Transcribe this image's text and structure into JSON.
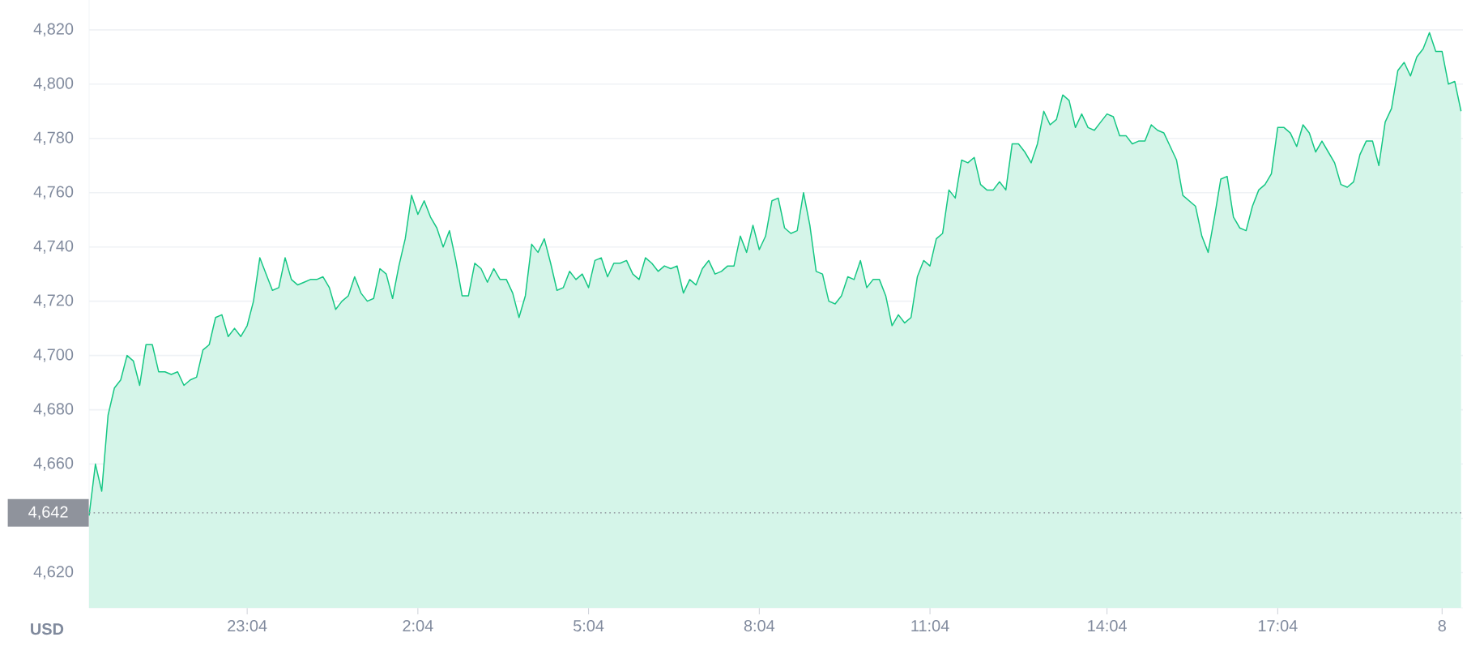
{
  "chart_data": {
    "type": "area",
    "ylabel": "USD",
    "grid": "y",
    "ylim": [
      4607,
      4831
    ],
    "categories": [
      null,
      null,
      null,
      null,
      null,
      null,
      null,
      null,
      null,
      null,
      null,
      null,
      null,
      null,
      null,
      null,
      null,
      null,
      null,
      null,
      null,
      null,
      null,
      null,
      null,
      "23:04",
      null,
      null,
      null,
      null,
      null,
      null,
      null,
      null,
      null,
      null,
      null,
      null,
      null,
      null,
      null,
      null,
      null,
      null,
      null,
      null,
      null,
      null,
      null,
      null,
      null,
      null,
      "2:04",
      null,
      null,
      null,
      null,
      null,
      null,
      null,
      null,
      null,
      null,
      null,
      null,
      null,
      null,
      null,
      null,
      null,
      null,
      null,
      null,
      null,
      null,
      null,
      null,
      null,
      null,
      "5:04",
      null,
      null,
      null,
      null,
      null,
      null,
      null,
      null,
      null,
      null,
      null,
      null,
      null,
      null,
      null,
      null,
      null,
      null,
      null,
      null,
      null,
      null,
      null,
      null,
      null,
      null,
      "8:04",
      null,
      null,
      null,
      null,
      null,
      null,
      null,
      null,
      null,
      null,
      null,
      null,
      null,
      null,
      null,
      null,
      null,
      null,
      null,
      null,
      null,
      null,
      null,
      null,
      null,
      null,
      "11:04",
      null,
      null,
      null,
      null,
      null,
      null,
      null,
      null,
      null,
      null,
      null,
      null,
      null,
      null,
      null,
      null,
      null,
      null,
      null,
      null,
      null,
      null,
      null,
      null,
      null,
      null,
      null,
      "14:04",
      null,
      null,
      null,
      null,
      null,
      null,
      null,
      null,
      null,
      null,
      null,
      null,
      null,
      null,
      null,
      null,
      null,
      null,
      null,
      null,
      null,
      null,
      null,
      null,
      null,
      null,
      "17:04",
      null,
      null,
      null,
      null,
      null,
      null,
      null,
      null,
      null,
      null,
      null,
      null,
      null,
      null,
      null,
      null,
      null,
      null,
      null,
      null,
      null,
      null,
      null,
      null,
      null,
      "8",
      null,
      null,
      null
    ],
    "yticks": [
      {
        "value": 4620,
        "label": "4,620"
      },
      {
        "value": 4640,
        "label": null
      },
      {
        "value": 4660,
        "label": "4,660"
      },
      {
        "value": 4680,
        "label": "4,680"
      },
      {
        "value": 4700,
        "label": "4,700"
      },
      {
        "value": 4720,
        "label": "4,720"
      },
      {
        "value": 4740,
        "label": "4,740"
      },
      {
        "value": 4760,
        "label": "4,760"
      },
      {
        "value": 4780,
        "label": "4,780"
      },
      {
        "value": 4800,
        "label": "4,800"
      },
      {
        "value": 4820,
        "label": "4,820"
      }
    ],
    "ref_lines": [
      {
        "axis": "y",
        "value": 4642,
        "label": "4,642",
        "color": "#8f939c",
        "line_style": "dotted"
      }
    ],
    "series": [
      {
        "color": "#16c784",
        "values": [
          4641,
          4660,
          4650,
          4678,
          4688,
          4691,
          4700,
          4698,
          4689,
          4704,
          4704,
          4694,
          4694,
          4693,
          4694,
          4689,
          4691,
          4692,
          4702,
          4704,
          4714,
          4715,
          4707,
          4710,
          4707,
          4711,
          4720,
          4736,
          4730,
          4724,
          4725,
          4736,
          4728,
          4726,
          4727,
          4728,
          4728,
          4729,
          4725,
          4717,
          4720,
          4722,
          4729,
          4723,
          4720,
          4721,
          4732,
          4730,
          4721,
          4733,
          4743,
          4759,
          4752,
          4757,
          4751,
          4747,
          4740,
          4746,
          4735,
          4722,
          4722,
          4734,
          4732,
          4727,
          4732,
          4728,
          4728,
          4723,
          4714,
          4722,
          4741,
          4738,
          4743,
          4734,
          4724,
          4725,
          4731,
          4728,
          4730,
          4725,
          4735,
          4736,
          4729,
          4734,
          4734,
          4735,
          4730,
          4728,
          4736,
          4734,
          4731,
          4733,
          4732,
          4733,
          4723,
          4728,
          4726,
          4732,
          4735,
          4730,
          4731,
          4733,
          4733,
          4744,
          4738,
          4748,
          4739,
          4744,
          4757,
          4758,
          4747,
          4745,
          4746,
          4760,
          4748,
          4731,
          4730,
          4720,
          4719,
          4722,
          4729,
          4728,
          4735,
          4725,
          4728,
          4728,
          4722,
          4711,
          4715,
          4712,
          4714,
          4729,
          4735,
          4733,
          4743,
          4745,
          4761,
          4758,
          4772,
          4771,
          4773,
          4763,
          4761,
          4761,
          4764,
          4761,
          4778,
          4778,
          4775,
          4771,
          4778,
          4790,
          4785,
          4787,
          4796,
          4794,
          4784,
          4789,
          4784,
          4783,
          4786,
          4789,
          4788,
          4781,
          4781,
          4778,
          4779,
          4779,
          4785,
          4783,
          4782,
          4777,
          4772,
          4759,
          4757,
          4755,
          4744,
          4738,
          4751,
          4765,
          4766,
          4751,
          4747,
          4746,
          4755,
          4761,
          4763,
          4767,
          4784,
          4784,
          4782,
          4777,
          4785,
          4782,
          4775,
          4779,
          4775,
          4771,
          4763,
          4762,
          4764,
          4774,
          4779,
          4779,
          4770,
          4786,
          4791,
          4805,
          4808,
          4803,
          4810,
          4813,
          4819,
          4812,
          4812,
          4800,
          4801,
          4790
        ]
      }
    ]
  }
}
